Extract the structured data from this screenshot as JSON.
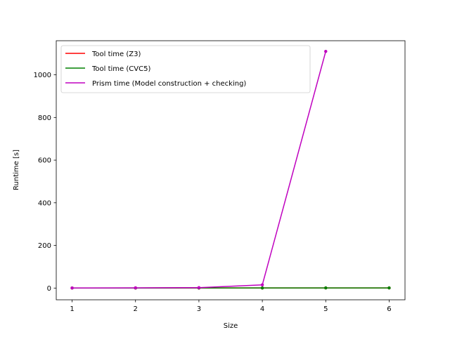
{
  "chart_data": {
    "type": "line",
    "title": "",
    "xlabel": "Size",
    "ylabel": "Runtime [s]",
    "xlim": [
      0.75,
      6.25
    ],
    "ylim": [
      -55,
      1160
    ],
    "x_ticks": [
      1,
      2,
      3,
      4,
      5,
      6
    ],
    "y_ticks": [
      0,
      200,
      400,
      600,
      800,
      1000
    ],
    "grid": false,
    "legend_position": "top-left",
    "x": [
      1,
      2,
      3,
      4,
      5,
      6
    ],
    "series": [
      {
        "name": "Tool time (Z3)",
        "color": "#ff0000",
        "x": [
          1,
          2,
          3,
          4,
          5,
          6
        ],
        "values": [
          0.2,
          0.3,
          0.4,
          0.5,
          0.6,
          0.7
        ]
      },
      {
        "name": "Tool time (CVC5)",
        "color": "#008000",
        "x": [
          1,
          2,
          3,
          4,
          5,
          6
        ],
        "values": [
          0.2,
          0.3,
          0.4,
          0.5,
          0.6,
          0.7
        ]
      },
      {
        "name": "Prism time (Model construction + checking)",
        "color": "#bf00bf",
        "x": [
          1,
          2,
          3,
          4,
          5
        ],
        "values": [
          0.5,
          1,
          2,
          15,
          1110
        ]
      }
    ]
  }
}
